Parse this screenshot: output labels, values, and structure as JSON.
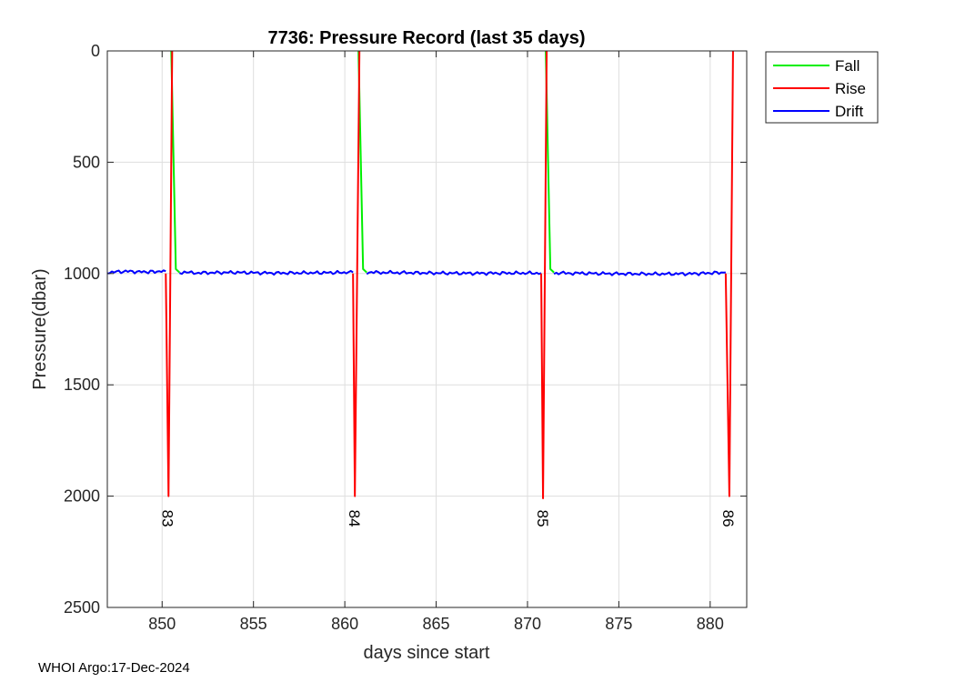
{
  "footer": "WHOI Argo:17-Dec-2024",
  "chart_data": {
    "type": "line",
    "title": "7736: Pressure Record (last 35 days)",
    "xlabel": "days since start",
    "ylabel": "Pressure(dbar)",
    "xlim": [
      847,
      882
    ],
    "ylim": [
      0,
      2500
    ],
    "y_reversed": true,
    "grid": true,
    "legend_position": "outside-top-right",
    "xticks": [
      850,
      855,
      860,
      865,
      870,
      875,
      880
    ],
    "yticks": [
      0,
      500,
      1000,
      1500,
      2000,
      2500
    ],
    "colors": {
      "Fall": "#00ee00",
      "Rise": "#ff0000",
      "Drift": "#0000ff"
    },
    "series": [
      {
        "name": "Fall",
        "segments": [
          [
            [
              850.5,
              0
            ],
            [
              850.75,
              980
            ],
            [
              850.95,
              995
            ]
          ],
          [
            [
              860.75,
              0
            ],
            [
              861.0,
              980
            ],
            [
              861.2,
              995
            ]
          ],
          [
            [
              871.0,
              0
            ],
            [
              871.25,
              980
            ],
            [
              871.45,
              995
            ]
          ]
        ]
      },
      {
        "name": "Rise",
        "segments": [
          [
            [
              850.2,
              1000
            ],
            [
              850.35,
              2000
            ],
            [
              850.55,
              0
            ]
          ],
          [
            [
              860.45,
              1000
            ],
            [
              860.55,
              2000
            ],
            [
              860.8,
              0
            ]
          ],
          [
            [
              870.75,
              1000
            ],
            [
              870.85,
              2010
            ],
            [
              871.05,
              0
            ]
          ],
          [
            [
              880.85,
              1000
            ],
            [
              881.05,
              2000
            ],
            [
              881.25,
              0
            ]
          ]
        ]
      },
      {
        "name": "Drift",
        "segments": [
          [
            [
              847.0,
              995
            ],
            [
              848.0,
              990
            ],
            [
              849.0,
              993
            ],
            [
              850.2,
              990
            ]
          ],
          [
            [
              850.95,
              995
            ],
            [
              852.0,
              997
            ],
            [
              854.0,
              995
            ],
            [
              856.0,
              998
            ],
            [
              858.0,
              997
            ],
            [
              860.45,
              995
            ]
          ],
          [
            [
              861.2,
              995
            ],
            [
              863.0,
              996
            ],
            [
              865.0,
              998
            ],
            [
              867.0,
              999
            ],
            [
              869.0,
              998
            ],
            [
              870.75,
              998
            ]
          ],
          [
            [
              871.45,
              998
            ],
            [
              873.0,
              999
            ],
            [
              875.0,
              1001
            ],
            [
              877.0,
              1002
            ],
            [
              879.0,
              1001
            ],
            [
              880.85,
              995
            ]
          ]
        ]
      }
    ],
    "annotations": [
      {
        "x": 850.3,
        "y": 2100,
        "text": "83"
      },
      {
        "x": 860.55,
        "y": 2100,
        "text": "84"
      },
      {
        "x": 870.85,
        "y": 2100,
        "text": "85"
      },
      {
        "x": 881.0,
        "y": 2100,
        "text": "86"
      }
    ]
  }
}
